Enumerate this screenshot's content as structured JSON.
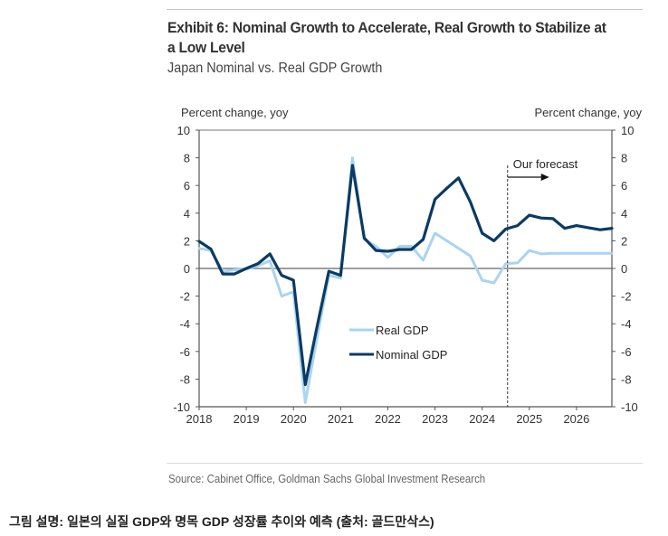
{
  "header": {
    "title": "Exhibit 6: Nominal Growth to Accelerate, Real Growth to Stabilize at a Low Level",
    "subtitle": "Japan Nominal vs. Real GDP Growth"
  },
  "footer": {
    "source": "Source: Cabinet Office, Goldman Sachs Global Investment Research",
    "caption": "그림 설명: 일본의 실질 GDP와 명목 GDP 성장률 추이와 예측 (출처: 골드만삭스)"
  },
  "colors": {
    "real": "#a9d4f2",
    "nominal": "#0b3a63",
    "axis": "#555555"
  },
  "chart_data": {
    "type": "line",
    "title": "Japan Nominal vs. Real GDP Growth",
    "ylabel_left": "Percent change, yoy",
    "ylabel_right": "Percent change, yoy",
    "ylim": [
      -10,
      10
    ],
    "yticks": [
      10,
      8,
      6,
      4,
      2,
      0,
      -2,
      -4,
      -6,
      -8,
      -10
    ],
    "xlim_years": [
      2018,
      2026.75
    ],
    "xticks": [
      "2018",
      "2019",
      "2020",
      "2021",
      "2022",
      "2023",
      "2024",
      "2025",
      "2026"
    ],
    "frequency": "quarterly",
    "x": [
      "2018Q1",
      "2018Q2",
      "2018Q3",
      "2018Q4",
      "2019Q1",
      "2019Q2",
      "2019Q3",
      "2019Q4",
      "2020Q1",
      "2020Q2",
      "2020Q3",
      "2020Q4",
      "2021Q1",
      "2021Q2",
      "2021Q3",
      "2021Q4",
      "2022Q1",
      "2022Q2",
      "2022Q3",
      "2022Q4",
      "2023Q1",
      "2023Q2",
      "2023Q3",
      "2023Q4",
      "2024Q1",
      "2024Q2",
      "2024Q3",
      "2024Q4",
      "2025Q1",
      "2025Q2",
      "2025Q3",
      "2025Q4",
      "2026Q1",
      "2026Q2",
      "2026Q3",
      "2026Q4"
    ],
    "series": [
      {
        "name": "Real GDP",
        "values": [
          1.45,
          1.3,
          -0.2,
          -0.1,
          -0.05,
          0.2,
          0.55,
          -2.0,
          -1.7,
          -9.7,
          -5.0,
          -0.5,
          -0.7,
          8.0,
          2.1,
          1.6,
          0.8,
          1.6,
          1.6,
          0.6,
          2.55,
          2.0,
          1.45,
          0.9,
          -0.85,
          -1.05,
          0.35,
          0.4,
          1.3,
          1.05,
          1.1,
          1.1,
          1.1,
          1.1,
          1.1,
          1.1
        ]
      },
      {
        "name": "Nominal GDP",
        "values": [
          1.96,
          1.4,
          -0.4,
          -0.4,
          0.0,
          0.35,
          1.05,
          -0.5,
          -0.85,
          -8.4,
          -4.2,
          -0.2,
          -0.5,
          7.45,
          2.2,
          1.3,
          1.24,
          1.37,
          1.37,
          2.1,
          5.0,
          5.8,
          6.55,
          4.8,
          2.55,
          2.0,
          2.85,
          3.1,
          3.85,
          3.65,
          3.6,
          2.9,
          3.1,
          2.95,
          2.8,
          2.9
        ]
      }
    ],
    "legend": [
      "Real GDP",
      "Nominal GDP"
    ],
    "legend_position": "lower-center",
    "annotations": [
      {
        "text": "Our forecast",
        "at": "2024Q3",
        "style": "dashed vertical line with right arrow"
      }
    ],
    "grid": false
  }
}
